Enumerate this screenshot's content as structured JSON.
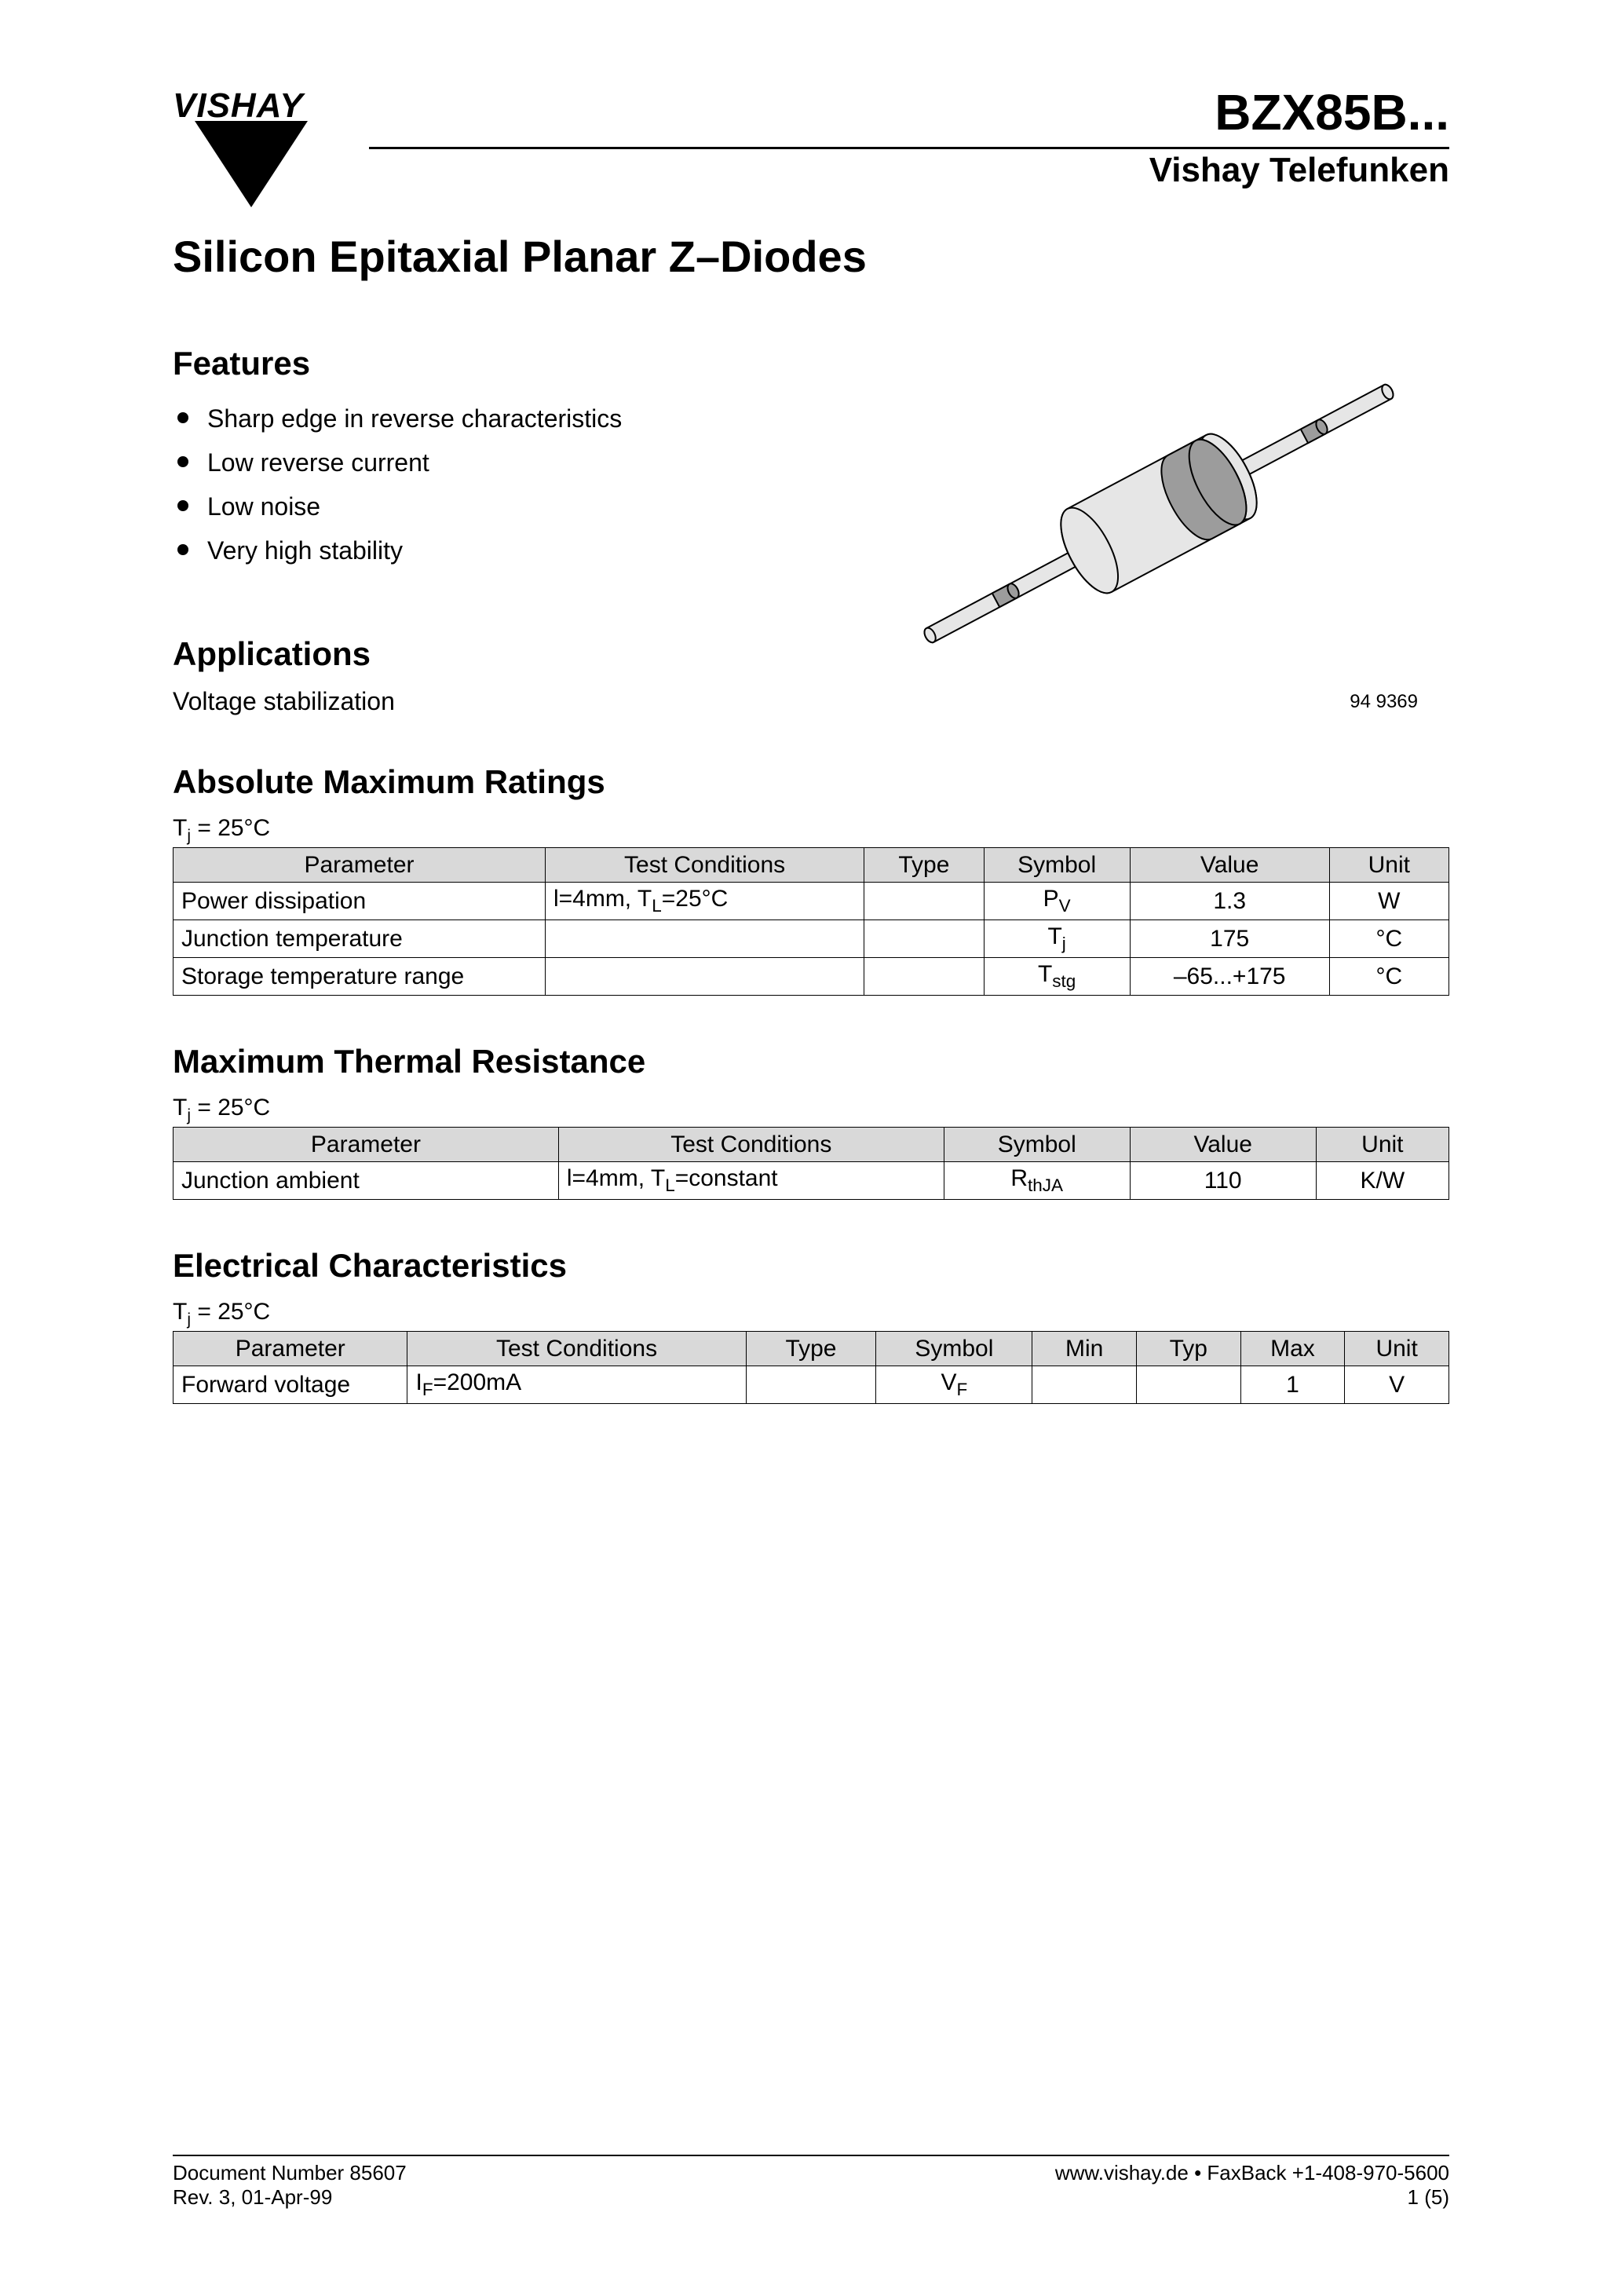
{
  "logo_text": "VISHAY",
  "part_number": "BZX85B...",
  "brand_sub": "Vishay Telefunken",
  "main_title": "Silicon Epitaxial Planar Z–Diodes",
  "features_heading": "Features",
  "features": [
    "Sharp edge in reverse characteristics",
    "Low reverse current",
    "Low noise",
    "Very high stability"
  ],
  "applications_heading": "Applications",
  "applications_text": "Voltage stabilization",
  "image_caption": "94 9369",
  "diode_svg": {
    "body_fill": "#e6e6e6",
    "band_fill": "#9c9c9c",
    "stroke": "#000000",
    "stroke_width": 2
  },
  "amr": {
    "heading": "Absolute Maximum Ratings",
    "condition_html": "T<sub>j</sub> = 25°C",
    "columns": [
      "Parameter",
      "Test Conditions",
      "Type",
      "Symbol",
      "Value",
      "Unit"
    ],
    "col_widths": [
      "28%",
      "24%",
      "9%",
      "11%",
      "15%",
      "9%"
    ],
    "rows": [
      {
        "parameter": "Power dissipation",
        "test_html": "l=4mm, T<sub>L</sub>=25°C",
        "type": "",
        "symbol_html": "P<sub>V</sub>",
        "value": "1.3",
        "unit": "W"
      },
      {
        "parameter": "Junction temperature",
        "test_html": "",
        "type": "",
        "symbol_html": "T<sub>j</sub>",
        "value": "175",
        "unit": "°C"
      },
      {
        "parameter": "Storage temperature range",
        "test_html": "",
        "type": "",
        "symbol_html": "T<sub>stg</sub>",
        "value": "–65...+175",
        "unit": "°C"
      }
    ]
  },
  "mtr": {
    "heading": "Maximum Thermal Resistance",
    "condition_html": "T<sub>j</sub> = 25°C",
    "columns": [
      "Parameter",
      "Test Conditions",
      "Symbol",
      "Value",
      "Unit"
    ],
    "col_widths": [
      "29%",
      "29%",
      "14%",
      "14%",
      "10%"
    ],
    "rows": [
      {
        "parameter": "Junction ambient",
        "test_html": "l=4mm, T<sub>L</sub>=constant",
        "symbol_html": "R<sub>thJA</sub>",
        "value": "110",
        "unit": "K/W"
      }
    ]
  },
  "ec": {
    "heading": "Electrical Characteristics",
    "condition_html": "T<sub>j</sub> = 25°C",
    "columns": [
      "Parameter",
      "Test Conditions",
      "Type",
      "Symbol",
      "Min",
      "Typ",
      "Max",
      "Unit"
    ],
    "col_widths": [
      "18%",
      "26%",
      "10%",
      "12%",
      "8%",
      "8%",
      "8%",
      "8%"
    ],
    "rows": [
      {
        "parameter": "Forward voltage",
        "test_html": "I<sub>F</sub>=200mA",
        "type": "",
        "symbol_html": "V<sub>F</sub>",
        "min": "",
        "typ": "",
        "max": "1",
        "unit": "V"
      }
    ]
  },
  "footer": {
    "doc_number": "Document Number 85607",
    "rev": "Rev. 3, 01-Apr-99",
    "url_line": "www.vishay.de • FaxBack +1-408-970-5600",
    "page": "1 (5)"
  }
}
